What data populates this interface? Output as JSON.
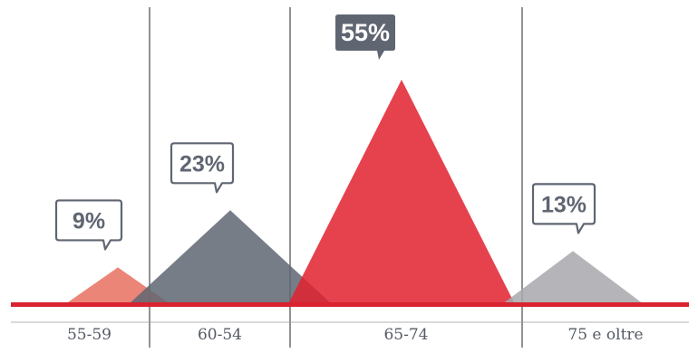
{
  "chart_data": {
    "type": "area",
    "categories": [
      "55-59",
      "60-54",
      "65-74",
      "75 e oltre"
    ],
    "values": [
      9,
      23,
      55,
      13
    ],
    "value_labels": [
      "9%",
      "23%",
      "55%",
      "13%"
    ],
    "colors": [
      "#e8705f",
      "#5f6672",
      "#e0212f",
      "#a8a8ad"
    ],
    "baseline_color": "#d9232e",
    "callout_colors": {
      "outline": "#5f6672",
      "highlight_fill": "#5f6672",
      "highlight_text": "#ffffff",
      "text": "#5f6672"
    },
    "highlighted_category": "65-74",
    "ylim": [
      0,
      55
    ]
  }
}
